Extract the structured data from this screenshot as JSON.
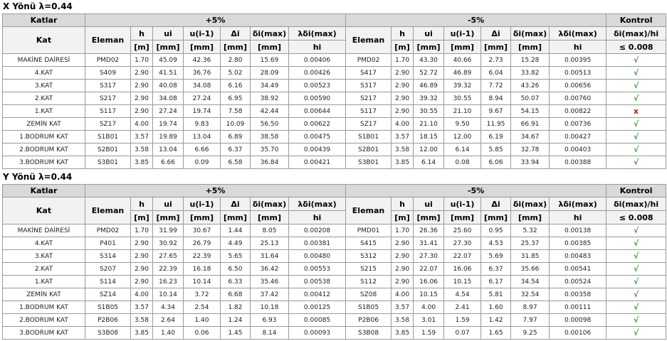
{
  "sections": [
    {
      "title": "X Yönü λ=0.44",
      "header": {
        "groups": [
          "Katlar",
          "+5%",
          "-5%",
          "Kontrol"
        ],
        "columns": [
          "Kat",
          "Eleman",
          "h",
          "ui",
          "u(i-1)",
          "Δi",
          "δi(max)",
          "λδi(max)",
          "Eleman",
          "h",
          "ui",
          "u(i-1)",
          "Δi",
          "δi(max)",
          "λδi(max)",
          "δi(max)/hi"
        ],
        "units": [
          "[m]",
          "[mm]",
          "[mm]",
          "[mm]",
          "[mm]",
          "hi",
          "[m]",
          "[mm]",
          "[mm]",
          "[mm]",
          "[mm]",
          "hi",
          "≤ 0.008"
        ]
      },
      "rows": [
        [
          "MAKİNE DAİRESİ",
          "PMD02",
          "1.70",
          "45.09",
          "42.36",
          "2.80",
          "15.69",
          "0.00406",
          "PMD02",
          "1.70",
          "43.30",
          "40.66",
          "2.73",
          "15.28",
          "0.00395",
          "√"
        ],
        [
          "4.KAT",
          "S409",
          "2.90",
          "41.51",
          "36.76",
          "5.02",
          "28.09",
          "0.00426",
          "S417",
          "2.90",
          "52.72",
          "46.89",
          "6.04",
          "33.82",
          "0.00513",
          "√"
        ],
        [
          "3.KAT",
          "S317",
          "2.90",
          "40.08",
          "34.08",
          "6.16",
          "34.49",
          "0.00523",
          "S317",
          "2.90",
          "46.89",
          "39.32",
          "7.72",
          "43.26",
          "0.00656",
          "√"
        ],
        [
          "2.KAT",
          "S217",
          "2.90",
          "34.08",
          "27.24",
          "6.95",
          "38.92",
          "0.00590",
          "S217",
          "2.90",
          "39.32",
          "30.55",
          "8.94",
          "50.07",
          "0.00760",
          "√"
        ],
        [
          "1.KAT",
          "S117",
          "2.90",
          "27.24",
          "19.74",
          "7.58",
          "42.44",
          "0.00644",
          "S117",
          "2.90",
          "30.55",
          "21.10",
          "9.67",
          "54.15",
          "0.00822",
          "x"
        ],
        [
          "ZEMİN KAT",
          "SZ17",
          "4.00",
          "19.74",
          "9.83",
          "10.09",
          "56.50",
          "0.00622",
          "SZ17",
          "4.00",
          "21.10",
          "9.50",
          "11.95",
          "66.91",
          "0.00736",
          "√"
        ],
        [
          "1.BODRUM KAT",
          "S1B01",
          "3.57",
          "19.89",
          "13.04",
          "6.89",
          "38.58",
          "0.00475",
          "S1B01",
          "3.57",
          "18.15",
          "12.00",
          "6.19",
          "34.67",
          "0.00427",
          "√"
        ],
        [
          "2.BODRUM KAT",
          "S2B01",
          "3.58",
          "13.04",
          "6.66",
          "6.37",
          "35.70",
          "0.00439",
          "S2B01",
          "3.58",
          "12.00",
          "6.14",
          "5.85",
          "32.78",
          "0.00403",
          "√"
        ],
        [
          "3.BODRUM KAT",
          "S3B01",
          "3.85",
          "6.66",
          "0.09",
          "6.58",
          "36.84",
          "0.00421",
          "S3B01",
          "3.85",
          "6.14",
          "0.08",
          "6.06",
          "33.94",
          "0.00388",
          "√"
        ]
      ]
    },
    {
      "title": "Y Yönü λ=0.44",
      "header": {
        "groups": [
          "Katlar",
          "+5%",
          "-5%",
          "Kontrol"
        ],
        "columns": [
          "Kat",
          "Eleman",
          "h",
          "ui",
          "u(i-1)",
          "Δi",
          "δi(max)",
          "λδi(max)",
          "Eleman",
          "h",
          "ui",
          "u(i-1)",
          "Δi",
          "δi(max)",
          "λδi(max)",
          "δi(max)/hi"
        ],
        "units": [
          "[m]",
          "[mm]",
          "[mm]",
          "[mm]",
          "[mm]",
          "hi",
          "[m]",
          "[mm]",
          "[mm]",
          "[mm]",
          "[mm]",
          "hi",
          "≤ 0.008"
        ]
      },
      "rows": [
        [
          "MAKİNE DAİRESİ",
          "PMD02",
          "1.70",
          "31.99",
          "30.67",
          "1.44",
          "8.05",
          "0.00208",
          "PMD01",
          "1.70",
          "26.36",
          "25.60",
          "0.95",
          "5.32",
          "0.00138",
          "√"
        ],
        [
          "4.KAT",
          "P401",
          "2.90",
          "30.92",
          "26.79",
          "4.49",
          "25.13",
          "0.00381",
          "S415",
          "2.90",
          "31.41",
          "27.30",
          "4.53",
          "25.37",
          "0.00385",
          "√"
        ],
        [
          "3.KAT",
          "S314",
          "2.90",
          "27.65",
          "22.39",
          "5.65",
          "31.64",
          "0.00480",
          "S312",
          "2.90",
          "27.30",
          "22.07",
          "5.69",
          "31.85",
          "0.00483",
          "√"
        ],
        [
          "2.KAT",
          "S207",
          "2.90",
          "22.39",
          "16.18",
          "6.50",
          "36.42",
          "0.00553",
          "S215",
          "2.90",
          "22.07",
          "16.06",
          "6.37",
          "35.66",
          "0.00541",
          "√"
        ],
        [
          "1.KAT",
          "S114",
          "2.90",
          "16.23",
          "10.14",
          "6.33",
          "35.46",
          "0.00538",
          "S112",
          "2.90",
          "16.06",
          "10.15",
          "6.17",
          "34.54",
          "0.00524",
          "√"
        ],
        [
          "ZEMİN KAT",
          "SZ14",
          "4.00",
          "10.14",
          "3.72",
          "6.68",
          "37.42",
          "0.00412",
          "SZ08",
          "4.00",
          "10.15",
          "4.54",
          "5.81",
          "32.54",
          "0.00358",
          "√"
        ],
        [
          "1.BODRUM KAT",
          "S1B05",
          "3.57",
          "4.34",
          "2.54",
          "1.82",
          "10.18",
          "0.00125",
          "S1B05",
          "3.57",
          "4.00",
          "2.41",
          "1.60",
          "8.97",
          "0.00111",
          "√"
        ],
        [
          "2.BODRUM KAT",
          "P2B06",
          "3.58",
          "2.64",
          "1.40",
          "1.24",
          "6.93",
          "0.00085",
          "P2B06",
          "3.58",
          "3.01",
          "1.59",
          "1.42",
          "7.97",
          "0.00098",
          "√"
        ],
        [
          "3.BODRUM KAT",
          "S3B08",
          "3.85",
          "1.40",
          "0.06",
          "1.45",
          "8.14",
          "0.00093",
          "S3B08",
          "3.85",
          "1.59",
          "0.07",
          "1.65",
          "9.25",
          "0.00106",
          "√"
        ]
      ]
    }
  ]
}
